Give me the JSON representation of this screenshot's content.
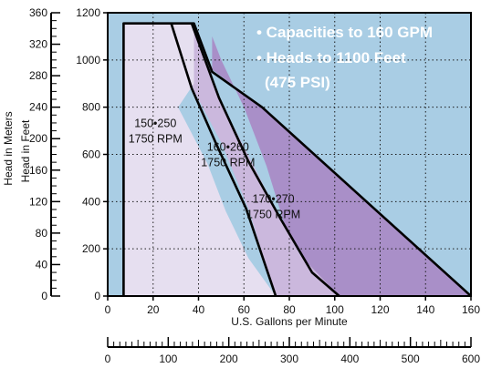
{
  "colors": {
    "plot_background": "#a9cde4",
    "zone_150_250": "#e6dff0",
    "zone_160_260": "#cbb8dd",
    "zone_170_270": "#a98fc8",
    "outline": "#000000",
    "grid": "#1b1b1b",
    "callout_text": "#ffffff"
  },
  "chart_data": {
    "type": "area",
    "x_axis": {
      "label": "U.S. Gallons per Minute",
      "range": [
        0,
        160
      ],
      "ticks": [
        "0",
        "20",
        "40",
        "60",
        "80",
        "100",
        "120",
        "140",
        "160"
      ]
    },
    "y_axis_feet": {
      "label": "Head in Feet",
      "range": [
        0,
        1200
      ],
      "ticks": [
        "0",
        "200",
        "400",
        "600",
        "800",
        "1000",
        "1200"
      ]
    },
    "y_axis_meters": {
      "label": "Head in Meters",
      "range": [
        0,
        360
      ],
      "ticks": [
        "0",
        "40",
        "80",
        "120",
        "160",
        "200",
        "240",
        "280",
        "320",
        "360"
      ]
    },
    "x_axis_secondary": {
      "range": [
        0,
        600
      ],
      "ticks": [
        "0",
        "100",
        "200",
        "300",
        "400",
        "500",
        "600"
      ]
    },
    "grid": true,
    "callouts": [
      "• Capacities to 160 GPM",
      "• Heads to 1100 Feet",
      "(475 PSI)"
    ],
    "series": [
      {
        "name": "170•270\n1750 RPM",
        "label_lines": [
          "170•270",
          "1750 RPM"
        ],
        "points": [
          [
            46,
            960
          ],
          [
            68,
            800
          ],
          [
            160,
            0
          ],
          [
            100,
            0
          ],
          [
            90,
            100
          ],
          [
            78,
            300
          ],
          [
            70,
            550
          ],
          [
            60,
            800
          ],
          [
            50,
            1000
          ],
          [
            46,
            1100
          ]
        ]
      },
      {
        "name": "160•260\n1750 RPM",
        "label_lines": [
          "160•260",
          "1750 RPM"
        ],
        "points": [
          [
            28,
            1155
          ],
          [
            37,
            1155
          ],
          [
            49,
            840
          ],
          [
            76,
            330
          ],
          [
            85,
            170
          ],
          [
            102,
            0
          ],
          [
            74,
            0
          ],
          [
            62,
            370
          ],
          [
            50,
            650
          ],
          [
            38,
            870
          ],
          [
            28,
            1155
          ]
        ]
      },
      {
        "name": "150•250\n1750 RPM",
        "label_lines": [
          "150•250",
          "1750 RPM"
        ],
        "points": [
          [
            7,
            1155
          ],
          [
            38,
            1155
          ],
          [
            38,
            900
          ],
          [
            31,
            800
          ],
          [
            44,
            560
          ],
          [
            52,
            360
          ],
          [
            62,
            160
          ],
          [
            74,
            0
          ],
          [
            7,
            0
          ]
        ]
      }
    ],
    "outlines": [
      [
        [
          7,
          0
        ],
        [
          7,
          1155
        ],
        [
          38,
          1155
        ],
        [
          46,
          950
        ],
        [
          68,
          800
        ],
        [
          160,
          0
        ]
      ],
      [
        [
          28,
          1155
        ],
        [
          37,
          880
        ],
        [
          48,
          640
        ],
        [
          61,
          370
        ],
        [
          74,
          0
        ]
      ],
      [
        [
          37,
          1155
        ],
        [
          49,
          840
        ],
        [
          62,
          570
        ],
        [
          76,
          330
        ],
        [
          90,
          100
        ],
        [
          102,
          0
        ]
      ]
    ]
  }
}
